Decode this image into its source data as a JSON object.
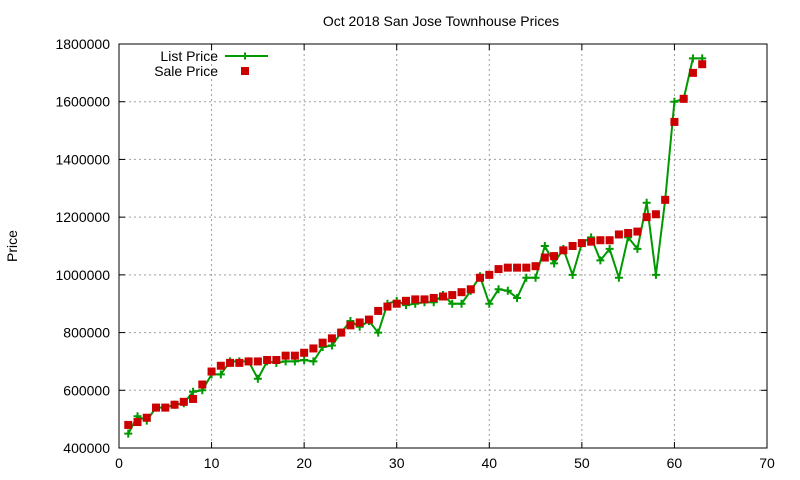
{
  "chart_data": {
    "type": "line",
    "title": "Oct 2018 San Jose Townhouse Prices",
    "xlabel": "",
    "ylabel": "Price",
    "xlim": [
      0,
      70
    ],
    "ylim": [
      400000,
      1800000
    ],
    "x_ticks": [
      "0",
      "10",
      "20",
      "30",
      "40",
      "50",
      "60",
      "70"
    ],
    "y_ticks": [
      "400000",
      "600000",
      "800000",
      "1000000",
      "1200000",
      "1400000",
      "1600000",
      "1800000"
    ],
    "grid": true,
    "legend_position": "top-left",
    "series": [
      {
        "name": "List Price",
        "style": "line+plus-markers",
        "color": "#009900",
        "x": [
          1,
          2,
          3,
          4,
          5,
          6,
          7,
          8,
          9,
          10,
          11,
          12,
          13,
          14,
          15,
          16,
          17,
          18,
          19,
          20,
          21,
          22,
          23,
          24,
          25,
          26,
          27,
          28,
          29,
          30,
          31,
          32,
          33,
          34,
          35,
          36,
          37,
          38,
          39,
          40,
          41,
          42,
          43,
          44,
          45,
          46,
          47,
          48,
          49,
          50,
          51,
          52,
          53,
          54,
          55,
          56,
          57,
          58,
          59,
          60,
          61,
          62,
          63
        ],
        "values": [
          450000,
          510000,
          495000,
          540000,
          540000,
          550000,
          555000,
          595000,
          600000,
          655000,
          655000,
          700000,
          700000,
          700000,
          640000,
          700000,
          695000,
          700000,
          700000,
          705000,
          700000,
          750000,
          755000,
          800000,
          840000,
          820000,
          840000,
          800000,
          900000,
          910000,
          895000,
          900000,
          905000,
          905000,
          930000,
          900000,
          900000,
          945000,
          995000,
          900000,
          950000,
          945000,
          920000,
          990000,
          990000,
          1100000,
          1040000,
          1090000,
          1000000,
          1110000,
          1130000,
          1050000,
          1090000,
          990000,
          1130000,
          1090000,
          1250000,
          1000000,
          1260000,
          1600000,
          1610000,
          1750000,
          1750000
        ]
      },
      {
        "name": "Sale Price",
        "style": "square-markers",
        "color": "#cc0000",
        "x": [
          1,
          2,
          3,
          4,
          5,
          6,
          7,
          8,
          9,
          10,
          11,
          12,
          13,
          14,
          15,
          16,
          17,
          18,
          19,
          20,
          21,
          22,
          23,
          24,
          25,
          26,
          27,
          28,
          29,
          30,
          31,
          32,
          33,
          34,
          35,
          36,
          37,
          38,
          39,
          40,
          41,
          42,
          43,
          44,
          45,
          46,
          47,
          48,
          49,
          50,
          51,
          52,
          53,
          54,
          55,
          56,
          57,
          58,
          59,
          60,
          61,
          62,
          63
        ],
        "values": [
          480000,
          490000,
          505000,
          540000,
          540000,
          550000,
          560000,
          570000,
          620000,
          665000,
          685000,
          695000,
          695000,
          700000,
          700000,
          705000,
          705000,
          720000,
          720000,
          730000,
          745000,
          765000,
          780000,
          800000,
          825000,
          835000,
          845000,
          875000,
          890000,
          900000,
          910000,
          915000,
          915000,
          920000,
          925000,
          930000,
          940000,
          950000,
          990000,
          1000000,
          1020000,
          1025000,
          1025000,
          1025000,
          1030000,
          1060000,
          1065000,
          1085000,
          1100000,
          1110000,
          1115000,
          1120000,
          1120000,
          1140000,
          1145000,
          1150000,
          1200000,
          1210000,
          1260000,
          1530000,
          1610000,
          1700000,
          1730000
        ]
      }
    ]
  }
}
